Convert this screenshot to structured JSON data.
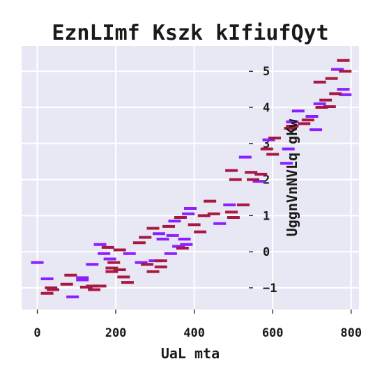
{
  "chart_data": {
    "type": "scatter",
    "title": "EznLImf Kszk kIfiufQyt",
    "xlabel": "UaL mta",
    "ylabel": "UggnVnNVLq gKw",
    "xlim": [
      -40,
      820
    ],
    "ylim": [
      -1.6,
      5.7
    ],
    "x_ticks": [
      0,
      200,
      400,
      600,
      800
    ],
    "y_ticks": [
      -1,
      0,
      1,
      2,
      3,
      4,
      5
    ],
    "x_tick_labels": [
      "0",
      "200",
      "400",
      "600",
      "800"
    ],
    "y_tick_labels": [
      "−1",
      "0",
      "1",
      "2",
      "3",
      "4",
      "5"
    ],
    "grid": true,
    "background": "#e8e8f4",
    "marker": "horizontal-dash",
    "series": [
      {
        "color": "#8b1fff",
        "points": [
          [
            0,
            -0.3
          ],
          [
            25,
            -0.75
          ],
          [
            90,
            -1.25
          ],
          [
            115,
            -0.72
          ],
          [
            115,
            -0.78
          ],
          [
            140,
            -0.35
          ],
          [
            160,
            0.2
          ],
          [
            170,
            -0.05
          ],
          [
            185,
            -0.2
          ],
          [
            265,
            -0.3
          ],
          [
            300,
            -0.25
          ],
          [
            310,
            0.5
          ],
          [
            320,
            0.35
          ],
          [
            340,
            -0.05
          ],
          [
            345,
            0.45
          ],
          [
            350,
            0.85
          ],
          [
            360,
            0.15
          ],
          [
            375,
            0.35
          ],
          [
            380,
            0.2
          ],
          [
            385,
            1.05
          ],
          [
            390,
            1.2
          ],
          [
            235,
            -0.05
          ],
          [
            465,
            0.78
          ],
          [
            490,
            1.3
          ],
          [
            530,
            2.62
          ],
          [
            565,
            1.95
          ],
          [
            590,
            3.1
          ],
          [
            635,
            2.45
          ],
          [
            640,
            2.85
          ],
          [
            650,
            3.6
          ],
          [
            665,
            3.9
          ],
          [
            700,
            3.75
          ],
          [
            710,
            3.38
          ],
          [
            720,
            4.1
          ],
          [
            765,
            5.05
          ],
          [
            780,
            4.5
          ],
          [
            785,
            4.35
          ]
        ]
      },
      {
        "color": "#a81844",
        "points": [
          [
            25,
            -1.15
          ],
          [
            35,
            -1.0
          ],
          [
            40,
            -1.05
          ],
          [
            75,
            -0.9
          ],
          [
            85,
            -0.65
          ],
          [
            125,
            -0.98
          ],
          [
            140,
            -0.95
          ],
          [
            145,
            -1.05
          ],
          [
            160,
            -0.95
          ],
          [
            180,
            0.12
          ],
          [
            190,
            -0.45
          ],
          [
            190,
            -0.55
          ],
          [
            195,
            -0.3
          ],
          [
            210,
            0.05
          ],
          [
            210,
            -0.5
          ],
          [
            220,
            -0.7
          ],
          [
            230,
            -0.85
          ],
          [
            260,
            0.25
          ],
          [
            275,
            0.4
          ],
          [
            280,
            -0.35
          ],
          [
            295,
            0.65
          ],
          [
            295,
            -0.55
          ],
          [
            315,
            -0.25
          ],
          [
            315,
            -0.42
          ],
          [
            335,
            0.7
          ],
          [
            365,
            0.95
          ],
          [
            370,
            0.1
          ],
          [
            400,
            0.75
          ],
          [
            415,
            0.55
          ],
          [
            425,
            1.0
          ],
          [
            440,
            1.4
          ],
          [
            450,
            1.05
          ],
          [
            495,
            1.1
          ],
          [
            500,
            0.95
          ],
          [
            495,
            2.25
          ],
          [
            505,
            2.0
          ],
          [
            525,
            1.3
          ],
          [
            545,
            2.2
          ],
          [
            550,
            2.0
          ],
          [
            570,
            2.15
          ],
          [
            585,
            2.85
          ],
          [
            600,
            2.7
          ],
          [
            605,
            3.15
          ],
          [
            645,
            3.42
          ],
          [
            650,
            3.48
          ],
          [
            680,
            3.55
          ],
          [
            690,
            3.65
          ],
          [
            720,
            4.7
          ],
          [
            725,
            4.0
          ],
          [
            735,
            4.2
          ],
          [
            745,
            4.02
          ],
          [
            750,
            4.8
          ],
          [
            760,
            4.38
          ],
          [
            780,
            5.3
          ],
          [
            785,
            5.0
          ]
        ]
      }
    ]
  }
}
